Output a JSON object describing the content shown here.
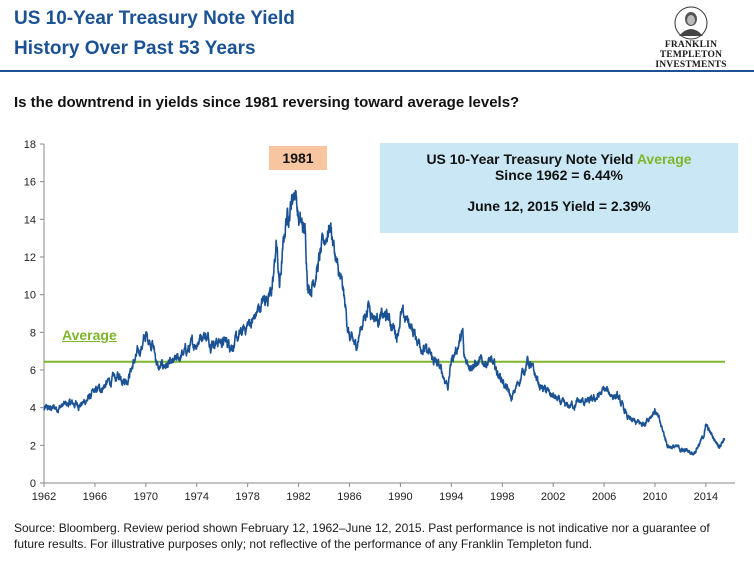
{
  "header": {
    "title_line1": "US 10-Year Treasury Note Yield",
    "title_line2": "History Over Past 53 Years",
    "logo_line1": "FRANKLIN TEMPLETON",
    "logo_line2": "INVESTMENTS",
    "logo_icon": "portrait-medallion-icon"
  },
  "question": "Is the downtrend in yields since 1981 reversing toward average levels?",
  "callout": {
    "line1_prefix": "US 10-Year  Treasury Note Yield ",
    "line1_highlight": "Average",
    "line2": "Since 1962 = 6.44%",
    "line3": "June 12, 2015 Yield  = 2.39%"
  },
  "peak_label": "1981",
  "average_label": "Average",
  "source": "Source: Bloomberg.  Review period shown February 12, 1962–June 12, 2015. Past performance is not indicative nor a guarantee of future results. For illustrative purposes only; not reflective of the performance of any Franklin Templeton fund.",
  "colors": {
    "title": "#1b5294",
    "series": "#1b5294",
    "average": "#7fb52a",
    "callout_bg": "#c9e7f4",
    "peak_bg": "#f7c6a0"
  },
  "chart_data": {
    "type": "line",
    "xlim": [
      1962,
      2015.5
    ],
    "ylim": [
      0,
      18
    ],
    "x_ticks": [
      1962,
      1966,
      1970,
      1974,
      1978,
      1982,
      1986,
      1990,
      1994,
      1998,
      2002,
      2006,
      2010,
      2014
    ],
    "y_ticks": [
      0,
      2,
      4,
      6,
      8,
      10,
      12,
      14,
      16,
      18
    ],
    "average": 6.44,
    "grid": false,
    "series": [
      {
        "x": [
          1962,
          1963,
          1964,
          1965,
          1966,
          1967,
          1967.5,
          1968,
          1968.5,
          1969,
          1969.5,
          1970,
          1970.5,
          1971,
          1971.5,
          1972,
          1973,
          1973.5,
          1974,
          1974.5,
          1975,
          1976,
          1977,
          1978,
          1978.5,
          1979,
          1980,
          1980.25,
          1980.5,
          1981,
          1981.75,
          1982,
          1982.5,
          1982.75,
          1983,
          1983.5,
          1984,
          1984.5,
          1985,
          1985.5,
          1986,
          1986.5,
          1987,
          1987.5,
          1988,
          1989,
          1989.75,
          1990,
          1990.75,
          1991,
          1992,
          1993,
          1993.75,
          1994,
          1994.9,
          1995,
          1996,
          1997,
          1998,
          1998.75,
          1999,
          2000,
          2001,
          2002,
          2003,
          2004,
          2005,
          2006,
          2007,
          2008,
          2009,
          2010,
          2011,
          2012,
          2013,
          2013.75,
          2014,
          2015,
          2015.45
        ],
        "y": [
          3.9,
          4.0,
          4.2,
          4.2,
          4.8,
          5.3,
          5.5,
          5.7,
          5.5,
          6.3,
          7.0,
          7.8,
          7.5,
          6.0,
          6.3,
          6.2,
          6.9,
          7.2,
          7.5,
          8.0,
          7.6,
          7.5,
          7.4,
          8.4,
          8.7,
          9.4,
          10.5,
          12.8,
          10.4,
          13.9,
          15.7,
          14.0,
          13.3,
          10.5,
          10.5,
          11.5,
          12.8,
          13.8,
          11.5,
          10.1,
          7.7,
          7.2,
          8.5,
          9.5,
          8.8,
          8.8,
          7.9,
          8.9,
          8.5,
          8.0,
          7.0,
          6.2,
          5.2,
          6.5,
          7.9,
          6.5,
          6.3,
          6.5,
          5.5,
          4.4,
          4.9,
          6.5,
          5.1,
          4.6,
          4.0,
          4.3,
          4.3,
          4.9,
          4.6,
          3.3,
          3.1,
          3.9,
          2.0,
          1.8,
          1.6,
          2.4,
          3.0,
          2.0,
          2.39
        ]
      }
    ]
  }
}
